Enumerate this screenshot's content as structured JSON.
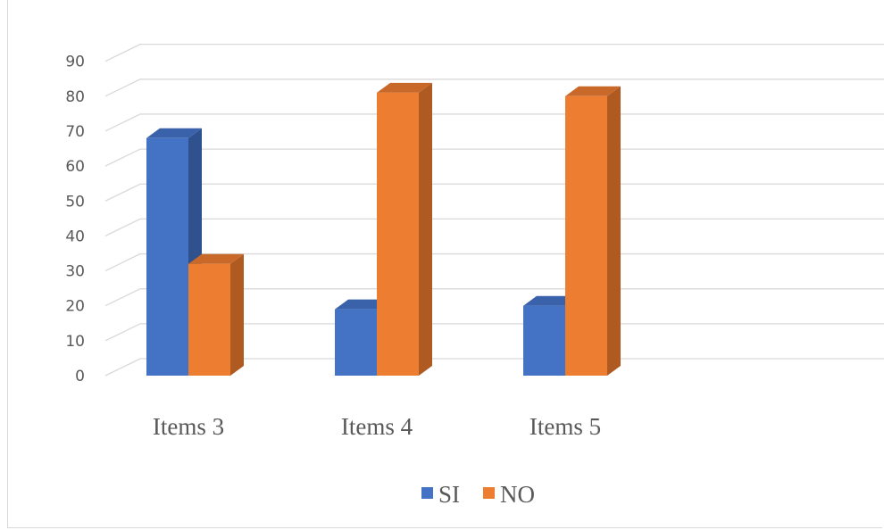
{
  "chart_data": {
    "type": "bar",
    "style": "3d-clustered-column",
    "categories": [
      "Items 3",
      "Items 4",
      "Items 5"
    ],
    "series": [
      {
        "name": "SI",
        "values": [
          68,
          19,
          20
        ],
        "color": "#4472C4",
        "side_color": "#2F528F",
        "top_color": "#3A62AB"
      },
      {
        "name": "NO",
        "values": [
          32,
          81,
          80
        ],
        "color": "#ED7D31",
        "side_color": "#AE5A21",
        "top_color": "#C8692A"
      }
    ],
    "y_ticks": [
      "0",
      "10",
      "20",
      "30",
      "40",
      "50",
      "60",
      "70",
      "80",
      "90"
    ],
    "ylim": [
      0,
      90
    ],
    "grid": true,
    "legend_position": "bottom"
  }
}
